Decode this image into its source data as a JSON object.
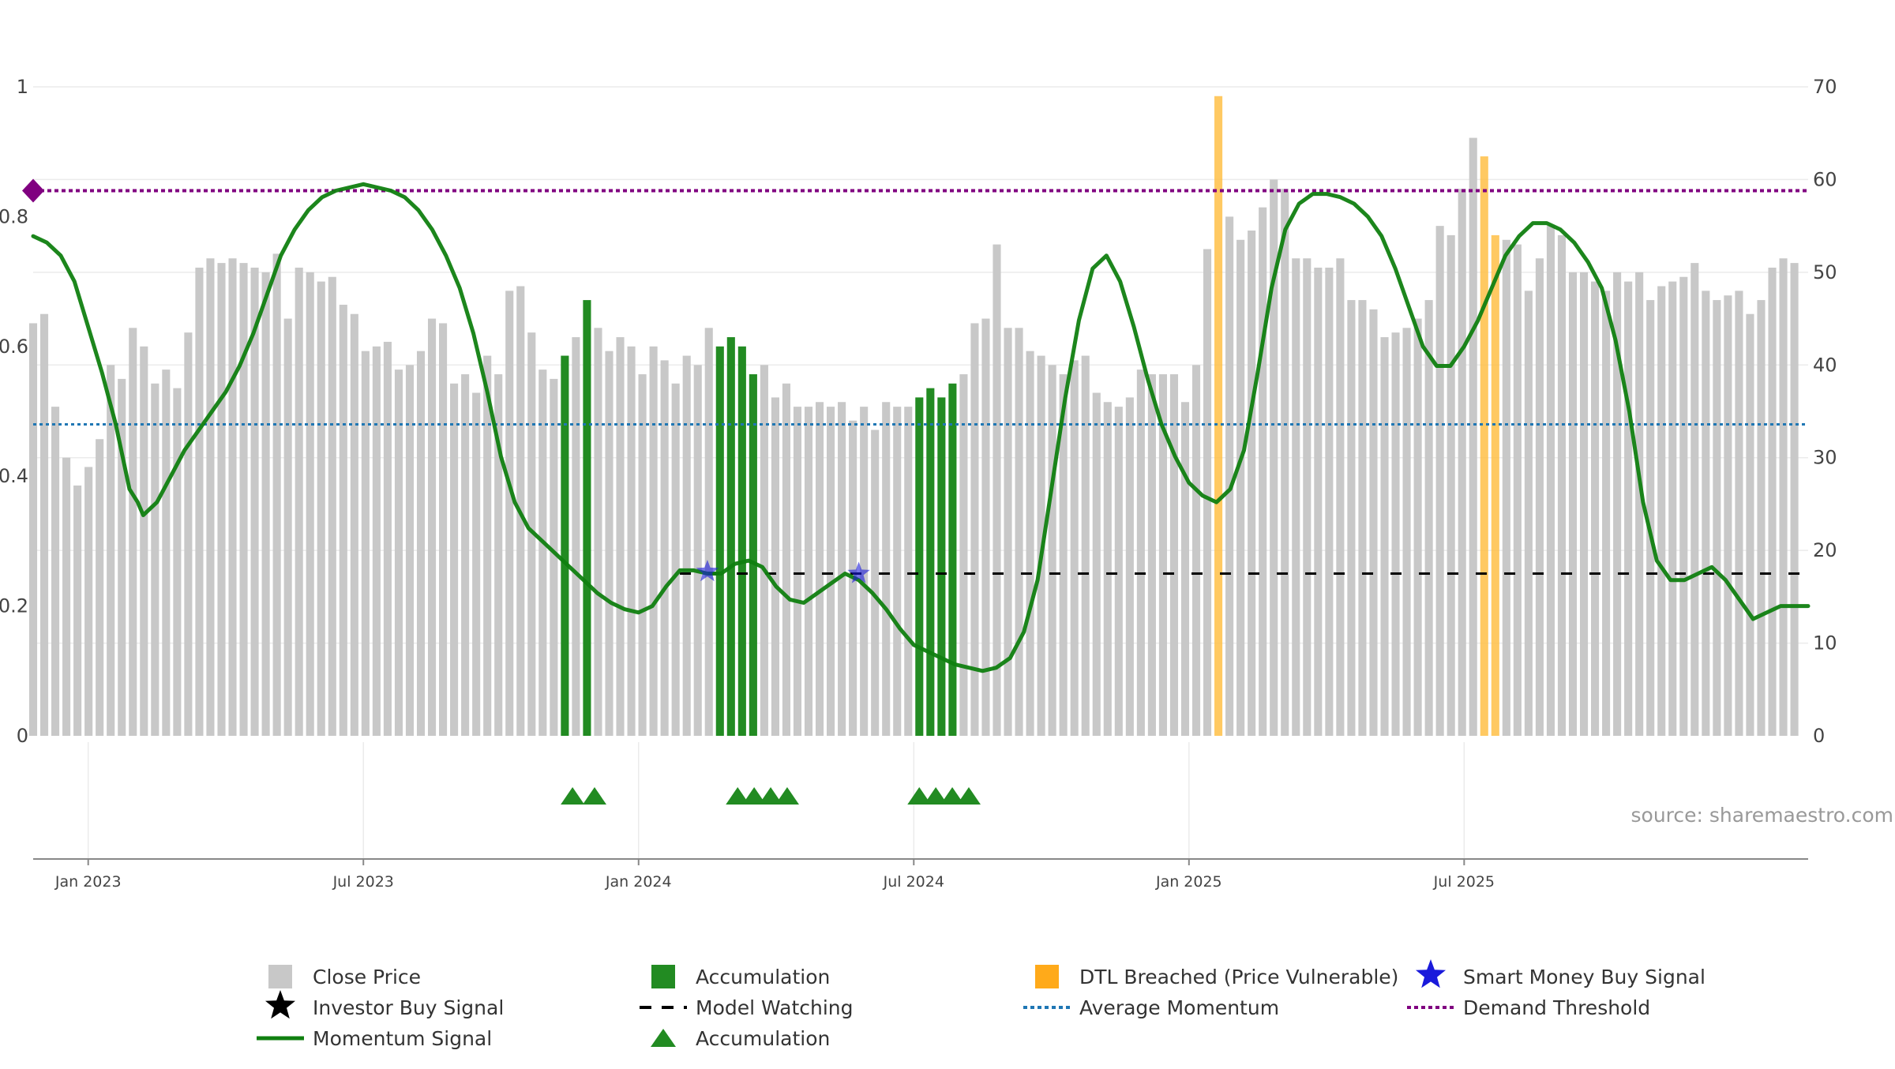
{
  "chart_data": {
    "type": "bar",
    "source_text": "source: sharemaestro.com",
    "y_left": {
      "range": [
        0,
        1
      ],
      "ticks": [
        "0",
        "0.2",
        "0.4",
        "0.6",
        "0.8",
        "1"
      ]
    },
    "y_right": {
      "range": [
        0,
        70
      ],
      "ticks": [
        "0",
        "10",
        "20",
        "30",
        "40",
        "50",
        "60",
        "70"
      ]
    },
    "x_ticks": [
      "Jan 2023",
      "Jul 2023",
      "Jan 2024",
      "Jul 2024",
      "Jan 2025",
      "Jul 2025"
    ],
    "grid": true,
    "legend_position": "bottom",
    "colors": {
      "close": "#c8c8c8",
      "accumulation": "#228b22",
      "dtl": "#ffbf47",
      "momentum": "#108010",
      "smart_money": "#1a1adb",
      "watching": "#000000",
      "average": "#1f77b4",
      "demand": "#800080"
    },
    "close_price": [
      44.5,
      45.5,
      35.5,
      30,
      27,
      29,
      32,
      40,
      38.5,
      44,
      42,
      38,
      39.5,
      37.5,
      43.5,
      50.5,
      51.5,
      51,
      51.5,
      51,
      50.5,
      50,
      52,
      45,
      50.5,
      50,
      49,
      49.5,
      46.5,
      45.5,
      41.5,
      42,
      42.5,
      39.5,
      40,
      41.5,
      45,
      44.5,
      38,
      39,
      37,
      41,
      39,
      48,
      48.5,
      43.5,
      39.5,
      38.5,
      41,
      43,
      47,
      44,
      41.5,
      43,
      42,
      39,
      42,
      40.5,
      38,
      41,
      40,
      44,
      42,
      43,
      42,
      39,
      40,
      36.5,
      38,
      35.5,
      35.5,
      36,
      35.5,
      36,
      34,
      35.5,
      33,
      36,
      35.5,
      35.5,
      36.5,
      37.5,
      36.5,
      38,
      39,
      44.5,
      45,
      53,
      44,
      44,
      41.5,
      41,
      40,
      39,
      40.5,
      41,
      37,
      36,
      35.5,
      36.5,
      39.5,
      39,
      39,
      39,
      36,
      40,
      52.5,
      69,
      56,
      53.5,
      54.5,
      57,
      60,
      59,
      51.5,
      51.5,
      50.5,
      50.5,
      51.5,
      47,
      47,
      46,
      43,
      43.5,
      44,
      45,
      47,
      55,
      54,
      59,
      64.5,
      62.5,
      54,
      53.5,
      53,
      48,
      51.5,
      55,
      54,
      50,
      50,
      49,
      48,
      50,
      49,
      50,
      47,
      48.5,
      49,
      49.5,
      51,
      48,
      47,
      47.5,
      48,
      45.5,
      47,
      50.5,
      51.5,
      51
    ],
    "bar_type": [
      "c",
      "c",
      "c",
      "c",
      "c",
      "c",
      "c",
      "c",
      "c",
      "c",
      "c",
      "c",
      "c",
      "c",
      "c",
      "c",
      "c",
      "c",
      "c",
      "c",
      "c",
      "c",
      "c",
      "c",
      "c",
      "c",
      "c",
      "c",
      "c",
      "c",
      "c",
      "c",
      "c",
      "c",
      "c",
      "c",
      "c",
      "c",
      "c",
      "c",
      "c",
      "c",
      "c",
      "c",
      "c",
      "c",
      "c",
      "c",
      "a",
      "c",
      "a",
      "c",
      "c",
      "c",
      "c",
      "c",
      "c",
      "c",
      "c",
      "c",
      "c",
      "c",
      "a",
      "a",
      "a",
      "a",
      "c",
      "c",
      "c",
      "c",
      "c",
      "c",
      "c",
      "c",
      "c",
      "c",
      "c",
      "c",
      "c",
      "c",
      "a",
      "a",
      "a",
      "a",
      "c",
      "c",
      "c",
      "c",
      "c",
      "c",
      "c",
      "c",
      "c",
      "c",
      "c",
      "c",
      "c",
      "c",
      "c",
      "c",
      "c",
      "c",
      "c",
      "c",
      "c",
      "c",
      "c",
      "d",
      "c",
      "c",
      "c",
      "c",
      "c",
      "c",
      "c",
      "c",
      "c",
      "c",
      "c",
      "c",
      "c",
      "c",
      "c",
      "c",
      "c",
      "c",
      "c",
      "c",
      "c",
      "c",
      "c",
      "d",
      "d",
      "c",
      "c",
      "c",
      "c",
      "c",
      "c",
      "c",
      "c",
      "c",
      "c",
      "c",
      "c",
      "c",
      "c",
      "c",
      "c",
      "c",
      "c",
      "c",
      "c",
      "c",
      "c",
      "c",
      "c",
      "c",
      "c",
      "c",
      "c",
      "c",
      "c"
    ],
    "momentum_signal": [
      [
        0,
        0.77
      ],
      [
        0.05,
        0.76
      ],
      [
        0.1,
        0.74
      ],
      [
        0.15,
        0.7
      ],
      [
        0.2,
        0.63
      ],
      [
        0.25,
        0.56
      ],
      [
        0.3,
        0.48
      ],
      [
        0.35,
        0.38
      ],
      [
        0.38,
        0.36
      ],
      [
        0.4,
        0.34
      ],
      [
        0.45,
        0.36
      ],
      [
        0.5,
        0.4
      ],
      [
        0.55,
        0.44
      ],
      [
        0.6,
        0.47
      ],
      [
        0.65,
        0.5
      ],
      [
        0.7,
        0.53
      ],
      [
        0.75,
        0.57
      ],
      [
        0.8,
        0.62
      ],
      [
        0.85,
        0.68
      ],
      [
        0.9,
        0.74
      ],
      [
        0.95,
        0.78
      ],
      [
        1.0,
        0.81
      ],
      [
        1.05,
        0.83
      ],
      [
        1.1,
        0.84
      ],
      [
        1.15,
        0.845
      ],
      [
        1.2,
        0.85
      ],
      [
        1.25,
        0.845
      ],
      [
        1.3,
        0.84
      ],
      [
        1.35,
        0.83
      ],
      [
        1.4,
        0.81
      ],
      [
        1.45,
        0.78
      ],
      [
        1.5,
        0.74
      ],
      [
        1.55,
        0.69
      ],
      [
        1.6,
        0.62
      ],
      [
        1.65,
        0.53
      ],
      [
        1.7,
        0.43
      ],
      [
        1.75,
        0.36
      ],
      [
        1.8,
        0.32
      ],
      [
        1.85,
        0.3
      ],
      [
        1.9,
        0.28
      ],
      [
        1.95,
        0.26
      ],
      [
        2.0,
        0.24
      ],
      [
        2.05,
        0.22
      ],
      [
        2.1,
        0.205
      ],
      [
        2.15,
        0.195
      ],
      [
        2.2,
        0.19
      ],
      [
        2.25,
        0.2
      ],
      [
        2.3,
        0.23
      ],
      [
        2.35,
        0.255
      ],
      [
        2.4,
        0.255
      ],
      [
        2.45,
        0.25
      ],
      [
        2.5,
        0.25
      ],
      [
        2.55,
        0.265
      ],
      [
        2.6,
        0.27
      ],
      [
        2.65,
        0.26
      ],
      [
        2.7,
        0.23
      ],
      [
        2.75,
        0.21
      ],
      [
        2.8,
        0.205
      ],
      [
        2.85,
        0.22
      ],
      [
        2.9,
        0.235
      ],
      [
        2.95,
        0.25
      ],
      [
        3.0,
        0.24
      ],
      [
        3.05,
        0.22
      ],
      [
        3.1,
        0.195
      ],
      [
        3.15,
        0.165
      ],
      [
        3.2,
        0.14
      ],
      [
        3.25,
        0.13
      ],
      [
        3.3,
        0.12
      ],
      [
        3.35,
        0.11
      ],
      [
        3.4,
        0.105
      ],
      [
        3.45,
        0.1
      ],
      [
        3.5,
        0.105
      ],
      [
        3.55,
        0.12
      ],
      [
        3.6,
        0.16
      ],
      [
        3.65,
        0.24
      ],
      [
        3.7,
        0.38
      ],
      [
        3.75,
        0.52
      ],
      [
        3.8,
        0.64
      ],
      [
        3.85,
        0.72
      ],
      [
        3.9,
        0.74
      ],
      [
        3.95,
        0.7
      ],
      [
        4.0,
        0.63
      ],
      [
        4.05,
        0.55
      ],
      [
        4.1,
        0.48
      ],
      [
        4.15,
        0.43
      ],
      [
        4.2,
        0.39
      ],
      [
        4.25,
        0.37
      ],
      [
        4.3,
        0.36
      ],
      [
        4.35,
        0.38
      ],
      [
        4.4,
        0.44
      ],
      [
        4.45,
        0.56
      ],
      [
        4.5,
        0.69
      ],
      [
        4.55,
        0.78
      ],
      [
        4.6,
        0.82
      ],
      [
        4.65,
        0.835
      ],
      [
        4.7,
        0.835
      ],
      [
        4.75,
        0.83
      ],
      [
        4.8,
        0.82
      ],
      [
        4.85,
        0.8
      ],
      [
        4.9,
        0.77
      ],
      [
        4.95,
        0.72
      ],
      [
        5.0,
        0.66
      ],
      [
        5.05,
        0.6
      ],
      [
        5.1,
        0.57
      ],
      [
        5.15,
        0.57
      ],
      [
        5.2,
        0.6
      ],
      [
        5.25,
        0.64
      ],
      [
        5.3,
        0.69
      ],
      [
        5.35,
        0.74
      ],
      [
        5.4,
        0.77
      ],
      [
        5.45,
        0.79
      ],
      [
        5.5,
        0.79
      ],
      [
        5.55,
        0.78
      ],
      [
        5.6,
        0.76
      ],
      [
        5.65,
        0.73
      ],
      [
        5.7,
        0.69
      ],
      [
        5.75,
        0.61
      ],
      [
        5.8,
        0.5
      ],
      [
        5.85,
        0.36
      ],
      [
        5.9,
        0.27
      ],
      [
        5.95,
        0.24
      ],
      [
        6.0,
        0.24
      ],
      [
        6.05,
        0.25
      ],
      [
        6.1,
        0.26
      ],
      [
        6.15,
        0.24
      ],
      [
        6.2,
        0.21
      ],
      [
        6.25,
        0.18
      ],
      [
        6.3,
        0.19
      ],
      [
        6.35,
        0.2
      ],
      [
        6.4,
        0.2
      ],
      [
        6.45,
        0.2
      ]
    ],
    "model_watching": {
      "value": 0.25,
      "x_start": 2.35,
      "x_end": 6.45
    },
    "average_momentum": 0.48,
    "demand_threshold": 0.84,
    "smart_money_signals": [
      [
        2.45,
        0.253
      ],
      [
        3.0,
        0.25
      ]
    ],
    "accumulation_markers": [
      1.96,
      2.04,
      2.56,
      2.62,
      2.68,
      2.74,
      3.22,
      3.28,
      3.34,
      3.4
    ],
    "legend": [
      {
        "label": "Close Price",
        "icon": "grey-square"
      },
      {
        "label": "Accumulation",
        "icon": "green-square"
      },
      {
        "label": "DTL Breached (Price Vulnerable)",
        "icon": "orange-square"
      },
      {
        "label": "Smart Money Buy Signal",
        "icon": "blue-star"
      },
      {
        "label": "Investor Buy Signal",
        "icon": "black-star"
      },
      {
        "label": "Model Watching",
        "icon": "black-dashed-line"
      },
      {
        "label": "Average Momentum",
        "icon": "blue-dotted-line"
      },
      {
        "label": "Demand Threshold",
        "icon": "purple-dotted-line"
      },
      {
        "label": "Momentum Signal",
        "icon": "green-line"
      },
      {
        "label": "Accumulation",
        "icon": "green-triangle"
      }
    ]
  }
}
